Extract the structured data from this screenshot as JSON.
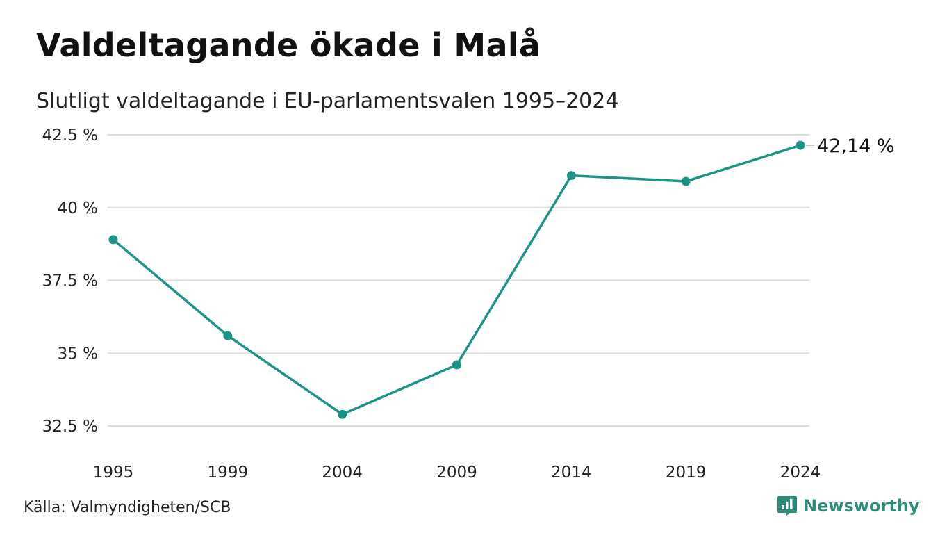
{
  "title": "Valdeltagande ökade i Malå",
  "subtitle": "Slutligt valdeltagande i EU-parlamentsvalen 1995–2024",
  "source": "Källa: Valmyndigheten/SCB",
  "brand": "Newsworthy",
  "colors": {
    "line": "#1a9585",
    "grid": "#dddddd",
    "brand": "#2d8c7a"
  },
  "chart_data": {
    "type": "line",
    "title": "Valdeltagande ökade i Malå",
    "subtitle": "Slutligt valdeltagande i EU-parlamentsvalen 1995–2024",
    "categories": [
      "1995",
      "1999",
      "2004",
      "2009",
      "2014",
      "2019",
      "2024"
    ],
    "values": [
      38.9,
      35.6,
      32.9,
      34.6,
      41.1,
      40.9,
      42.14
    ],
    "ylim": [
      32.5,
      42.5
    ],
    "yticks": [
      42.5,
      40,
      37.5,
      35,
      32.5
    ],
    "ytick_labels": [
      "42.5 %",
      "40 %",
      "37.5 %",
      "35 %",
      "32.5 %"
    ],
    "end_label": "42,14 %",
    "grid": true,
    "legend": "none"
  }
}
